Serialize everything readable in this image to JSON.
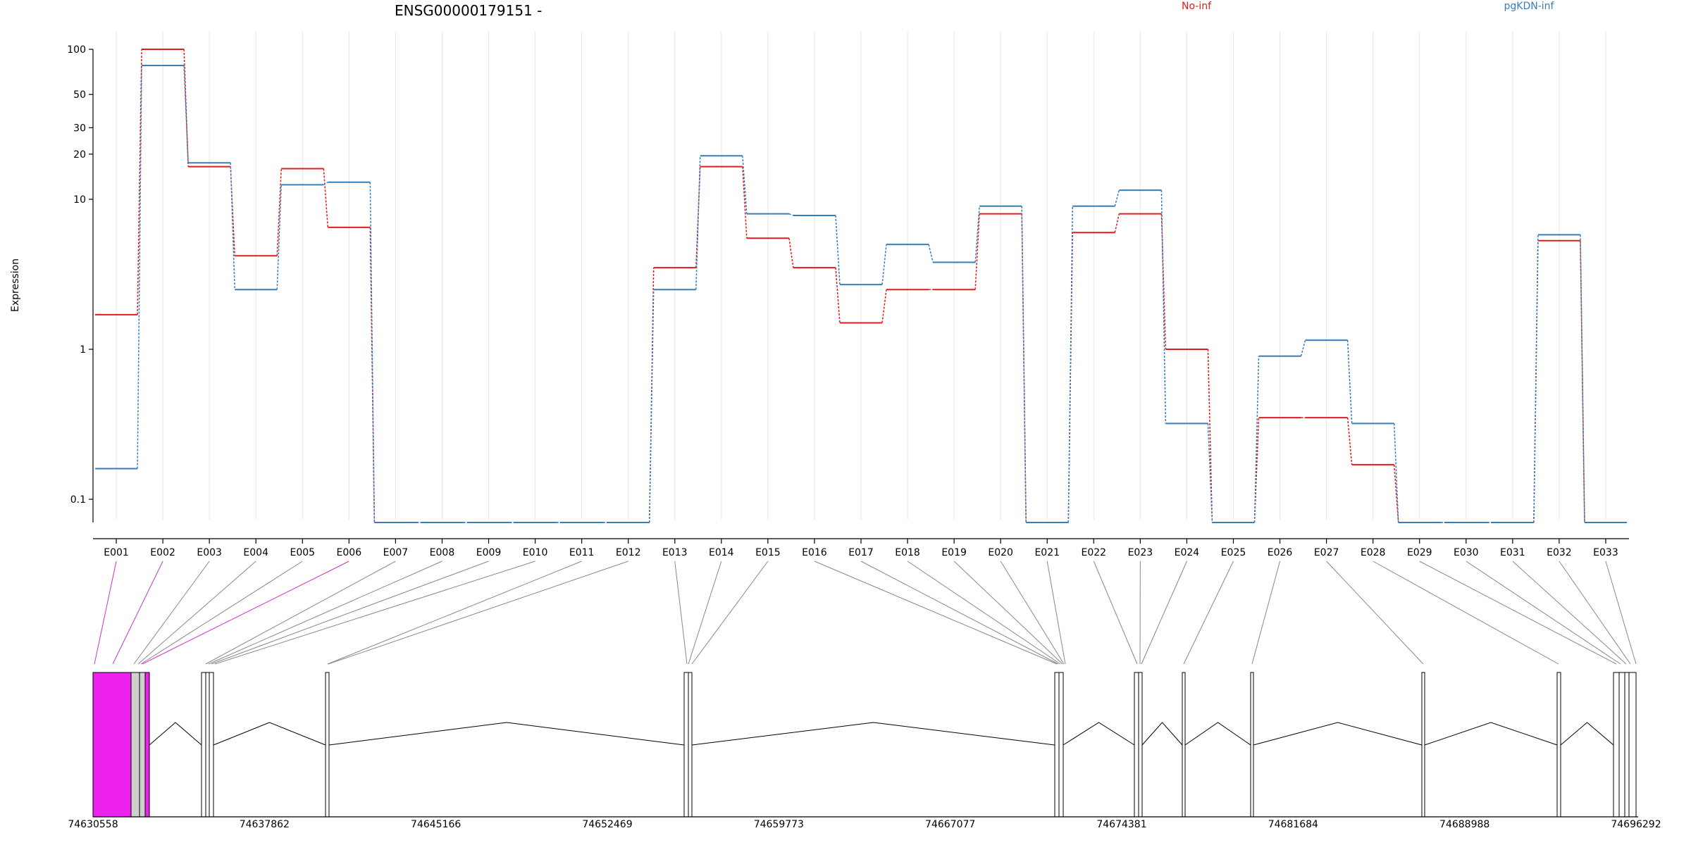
{
  "chart_data": {
    "type": "line",
    "title": "ENSG00000179151 -",
    "ylabel": "Expression",
    "yscale": "log",
    "ylim": [
      0.07,
      100
    ],
    "yticks": [
      "0.1",
      "1",
      "10",
      "20",
      "30",
      "50",
      "100"
    ],
    "grid": true,
    "legend_position": "top-right",
    "categories": [
      "E001",
      "E002",
      "E003",
      "E004",
      "E005",
      "E006",
      "E007",
      "E008",
      "E009",
      "E010",
      "E011",
      "E012",
      "E013",
      "E014",
      "E015",
      "E016",
      "E017",
      "E018",
      "E019",
      "E020",
      "E021",
      "E022",
      "E023",
      "E024",
      "E025",
      "E026",
      "E027",
      "E028",
      "E029",
      "E030",
      "E031",
      "E032",
      "E033"
    ],
    "series": [
      {
        "name": "No-inf",
        "color": "#e41a1c",
        "values": [
          1.7,
          100,
          16.5,
          4.2,
          16,
          6.5,
          0.07,
          0.07,
          0.07,
          0.07,
          0.07,
          0.07,
          3.5,
          16.5,
          5.5,
          3.5,
          1.5,
          2.5,
          2.5,
          8,
          0.07,
          6,
          8,
          1.0,
          0.07,
          0.35,
          0.35,
          0.17,
          0.07,
          0.07,
          0.07,
          5.3,
          0.07
        ]
      },
      {
        "name": "pgKDN-inf",
        "color": "#377eb8",
        "values": [
          0.16,
          78,
          17.5,
          2.5,
          12.5,
          13,
          0.07,
          0.07,
          0.07,
          0.07,
          0.07,
          0.07,
          2.5,
          19.5,
          8,
          7.8,
          2.7,
          5,
          3.8,
          9,
          0.07,
          9,
          11.5,
          0.32,
          0.07,
          0.9,
          1.15,
          0.32,
          0.07,
          0.07,
          0.07,
          5.8,
          0.07
        ]
      }
    ],
    "gene_model": {
      "coordinate_labels": [
        "74630558",
        "74637862",
        "74645166",
        "74652469",
        "74659773",
        "74667077",
        "74674381",
        "74681684",
        "74688988",
        "74696292"
      ],
      "range": [
        74630558,
        74696292
      ],
      "highlight_color": "#ee22ee",
      "highlighted_exons": [
        "E001",
        "E002",
        "E006"
      ]
    }
  }
}
